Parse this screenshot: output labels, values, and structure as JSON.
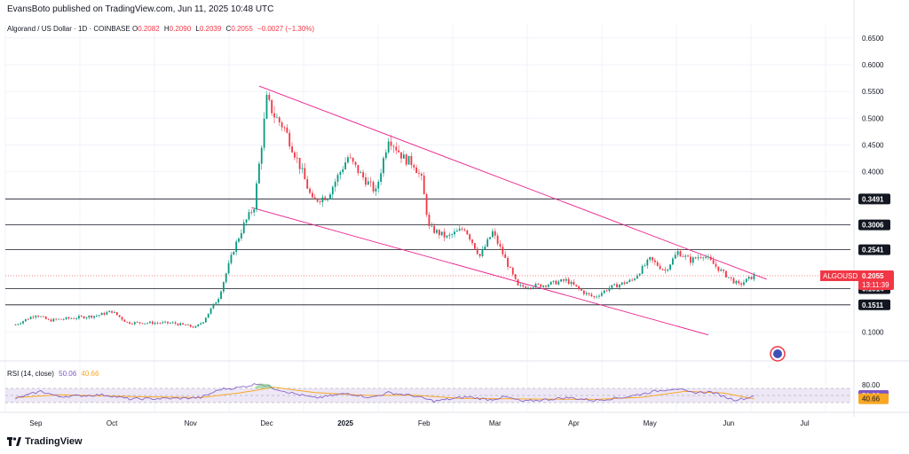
{
  "header": {
    "publisher": "EvansBoto published on TradingView.com, Jun 11, 2025 10:48 UTC"
  },
  "symbol": {
    "name": "Algorand / US Dollar · 1D · COINBASE",
    "open_label": "O",
    "open": "0.2082",
    "high_label": "H",
    "high": "0.2090",
    "low_label": "L",
    "low": "0.2039",
    "close_label": "C",
    "close": "0.2055",
    "change": "−0.0027 (−1.30%)"
  },
  "rsi": {
    "label": "RSI (14, close)",
    "value": "50.06",
    "ma_value": "40.66",
    "upper_tick": "80.00"
  },
  "brand": {
    "name": "TradingView"
  },
  "price_tag": {
    "ticker": "ALGOUSD",
    "price": "0.2055",
    "countdown": "13:11:39"
  },
  "colors": {
    "up": "#089981",
    "down": "#f23645",
    "channel": "#e91e8c",
    "level": "#131722",
    "rsi": "#7e57c2",
    "rsi_ma": "#f9a825",
    "rsi_band": "#ede7f6"
  },
  "chart_data": {
    "type": "candlestick",
    "ylim": [
      0.0878,
      0.6579
    ],
    "y_ticks": [
      "0.6500",
      "0.6000",
      "0.5500",
      "0.5000",
      "0.4500",
      "0.4000",
      "0.1000"
    ],
    "x_labels": [
      "Sep",
      "Oct",
      "Nov",
      "Dec",
      "2025",
      "Feb",
      "Mar",
      "Apr",
      "May",
      "Jun",
      "Jul"
    ],
    "levels": [
      "0.3491",
      "0.3006",
      "0.2541",
      "0.1814",
      "0.1511"
    ],
    "channel": {
      "upper": [
        [
          "2024-11-28",
          0.56
        ],
        [
          "2025-06-16",
          0.199
        ]
      ],
      "lower": [
        [
          "2024-11-25",
          0.333
        ],
        [
          "2025-05-24",
          0.095
        ]
      ]
    },
    "price_path": [
      [
        "2024-08-24",
        0.114
      ],
      [
        "2024-09-01",
        0.133
      ],
      [
        "2024-09-06",
        0.122
      ],
      [
        "2024-09-25",
        0.131
      ],
      [
        "2024-10-01",
        0.139
      ],
      [
        "2024-10-07",
        0.118
      ],
      [
        "2024-10-25",
        0.117
      ],
      [
        "2024-11-03",
        0.109
      ],
      [
        "2024-11-06",
        0.121
      ],
      [
        "2024-11-12",
        0.165
      ],
      [
        "2024-11-18",
        0.255
      ],
      [
        "2024-11-22",
        0.301
      ],
      [
        "2024-11-26",
        0.335
      ],
      [
        "2024-11-29",
        0.452
      ],
      [
        "2024-12-01",
        0.535
      ],
      [
        "2024-12-04",
        0.505
      ],
      [
        "2024-12-08",
        0.481
      ],
      [
        "2024-12-14",
        0.411
      ],
      [
        "2024-12-19",
        0.345
      ],
      [
        "2024-12-25",
        0.355
      ],
      [
        "2025-01-02",
        0.427
      ],
      [
        "2025-01-07",
        0.395
      ],
      [
        "2025-01-13",
        0.362
      ],
      [
        "2025-01-18",
        0.465
      ],
      [
        "2025-01-24",
        0.425
      ],
      [
        "2025-01-28",
        0.415
      ],
      [
        "2025-01-31",
        0.385
      ],
      [
        "2025-02-03",
        0.295
      ],
      [
        "2025-02-10",
        0.277
      ],
      [
        "2025-02-17",
        0.295
      ],
      [
        "2025-02-23",
        0.242
      ],
      [
        "2025-02-28",
        0.287
      ],
      [
        "2025-03-03",
        0.257
      ],
      [
        "2025-03-10",
        0.185
      ],
      [
        "2025-03-20",
        0.188
      ],
      [
        "2025-03-29",
        0.197
      ],
      [
        "2025-04-05",
        0.174
      ],
      [
        "2025-04-09",
        0.165
      ],
      [
        "2025-04-15",
        0.183
      ],
      [
        "2025-04-24",
        0.197
      ],
      [
        "2025-05-01",
        0.236
      ],
      [
        "2025-05-07",
        0.215
      ],
      [
        "2025-05-12",
        0.25
      ],
      [
        "2025-05-17",
        0.234
      ],
      [
        "2025-05-22",
        0.245
      ],
      [
        "2025-05-30",
        0.21
      ],
      [
        "2025-06-05",
        0.188
      ],
      [
        "2025-06-11",
        0.2055
      ]
    ],
    "rsi_path": [
      [
        "2024-08-24",
        41
      ],
      [
        "2024-09-03",
        62
      ],
      [
        "2024-09-10",
        47
      ],
      [
        "2024-09-28",
        52
      ],
      [
        "2024-10-08",
        40
      ],
      [
        "2024-10-28",
        42
      ],
      [
        "2024-11-05",
        44
      ],
      [
        "2024-11-13",
        68
      ],
      [
        "2024-11-20",
        72
      ],
      [
        "2024-11-28",
        84
      ],
      [
        "2024-12-04",
        70
      ],
      [
        "2024-12-12",
        55
      ],
      [
        "2024-12-20",
        43
      ],
      [
        "2025-01-02",
        56
      ],
      [
        "2025-01-11",
        44
      ],
      [
        "2025-01-18",
        58
      ],
      [
        "2025-01-28",
        49
      ],
      [
        "2025-02-05",
        34
      ],
      [
        "2025-02-18",
        46
      ],
      [
        "2025-02-27",
        38
      ],
      [
        "2025-03-05",
        46
      ],
      [
        "2025-03-12",
        33
      ],
      [
        "2025-03-30",
        44
      ],
      [
        "2025-04-09",
        36
      ],
      [
        "2025-04-22",
        46
      ],
      [
        "2025-05-03",
        62
      ],
      [
        "2025-05-11",
        70
      ],
      [
        "2025-05-17",
        58
      ],
      [
        "2025-05-25",
        60
      ],
      [
        "2025-06-03",
        38
      ],
      [
        "2025-06-08",
        42
      ],
      [
        "2025-06-11",
        50.06
      ]
    ],
    "rsi_ma_path": [
      [
        "2024-08-24",
        44
      ],
      [
        "2024-09-10",
        52
      ],
      [
        "2024-10-10",
        47
      ],
      [
        "2024-11-05",
        44
      ],
      [
        "2024-11-20",
        57
      ],
      [
        "2024-12-04",
        73
      ],
      [
        "2024-12-20",
        58
      ],
      [
        "2025-01-10",
        50
      ],
      [
        "2025-01-28",
        51
      ],
      [
        "2025-02-15",
        42
      ],
      [
        "2025-03-15",
        40
      ],
      [
        "2025-04-10",
        39
      ],
      [
        "2025-04-28",
        45
      ],
      [
        "2025-05-15",
        62
      ],
      [
        "2025-05-30",
        57
      ],
      [
        "2025-06-11",
        40.66
      ]
    ],
    "rsi_ylim": [
      20,
      100
    ]
  }
}
